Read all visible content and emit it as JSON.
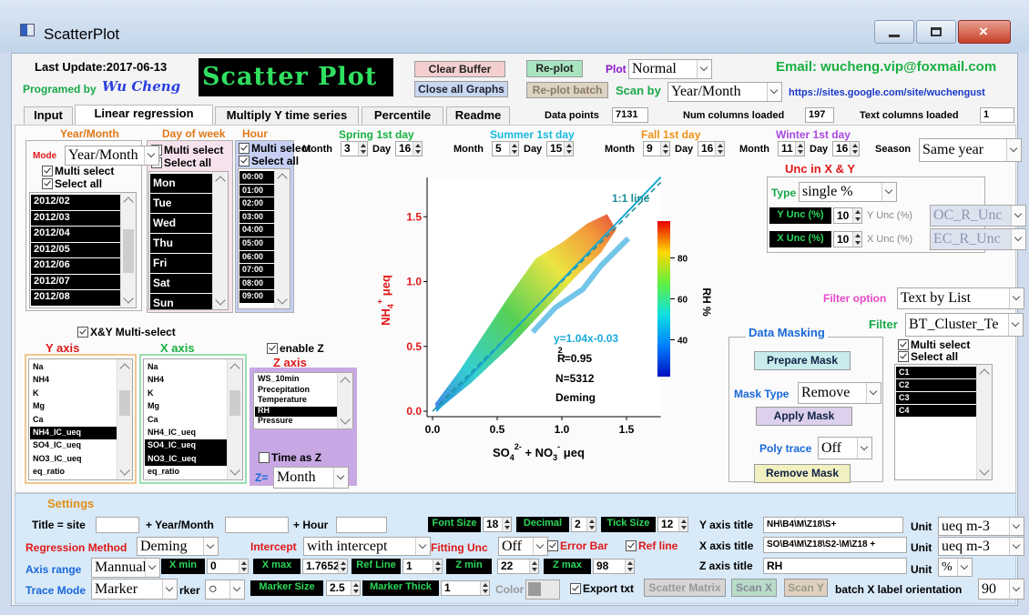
{
  "window": {
    "title": "ScatterPlot"
  },
  "header": {
    "last_update": "Last Update:2017-06-13",
    "programmed_by": "Programed by",
    "author": "Wu Cheng",
    "logo": "Scatter Plot",
    "clear_buffer": "Clear Buffer",
    "close_all_graphs": "Close all Graphs",
    "replot": "Re-plot",
    "replot_batch": "Re-plot batch",
    "plot_label": "Plot",
    "plot_value": "Normal",
    "scan_by_label": "Scan by",
    "scan_by_value": "Year/Month",
    "email": "Email: wucheng.vip@foxmail.com",
    "url": "https://sites.google.com/site/wuchengust"
  },
  "tabs": [
    "Input",
    "Linear regression",
    "Multiply Y time series",
    "Percentile",
    "Readme"
  ],
  "active_tab": 1,
  "status": {
    "data_points_label": "Data points",
    "data_points": 7131,
    "num_columns_label": "Num columns loaded",
    "num_columns": 197,
    "text_columns_label": "Text columns loaded",
    "text_columns": 1
  },
  "year_month": {
    "title": "Year/Month",
    "mode_label": "Mode",
    "mode_value": "Year/Month",
    "multi_select": "Multi select",
    "select_all": "Select all",
    "items": [
      "2012/02",
      "2012/03",
      "2012/04",
      "2012/05",
      "2012/06",
      "2012/07",
      "2012/08"
    ]
  },
  "day_of_week": {
    "title": "Day of week",
    "multi_select": "Multi select",
    "select_all": "Select all",
    "items": [
      "Mon",
      "Tue",
      "Wed",
      "Thu",
      "Fri",
      "Sat",
      "Sun"
    ]
  },
  "hour": {
    "title": "Hour",
    "multi_select": "Multi select",
    "select_all": "Select all",
    "items": [
      "00:00",
      "01:00",
      "02:00",
      "03:00",
      "04:00",
      "05:00",
      "06:00",
      "07:00",
      "08:00",
      "09:00"
    ]
  },
  "seasons": {
    "items": [
      {
        "title": "Spring 1st day",
        "month_label": "Month",
        "month": 3,
        "day_label": "Day",
        "day": 16
      },
      {
        "title": "Summer 1st day",
        "month_label": "Month",
        "month": 5,
        "day_label": "Day",
        "day": 15
      },
      {
        "title": "Fall 1st day",
        "month_label": "Month",
        "month": 9,
        "day_label": "Day",
        "day": 16
      },
      {
        "title": "Winter 1st day",
        "month_label": "Month",
        "month": 11,
        "day_label": "Day",
        "day": 16
      }
    ],
    "season_label": "Season",
    "season_value": "Same year"
  },
  "uncertainty": {
    "title": "Unc in X & Y",
    "type_label": "Type",
    "type_value": "single %",
    "y_button": "Y Unc (%)",
    "y_value": 10,
    "y_label": "Y Unc (%)",
    "y_column": "OC_R_Unc",
    "x_button": "X Unc (%)",
    "x_value": 10,
    "x_label": "X Unc (%)",
    "x_column": "EC_R_Unc"
  },
  "filter": {
    "option_label": "Filter option",
    "option_value": "Text by List",
    "filter_label": "Filter",
    "filter_value": "BT_Cluster_Te",
    "multi_select": "Multi select",
    "select_all": "Select all",
    "items": [
      "C1",
      "C2",
      "C3",
      "C4"
    ]
  },
  "masking": {
    "title": "Data Masking",
    "prepare": "Prepare Mask",
    "type_label": "Mask Type",
    "type_value": "Remove",
    "apply": "Apply Mask",
    "poly_label": "Poly trace",
    "poly_value": "Off",
    "remove": "Remove Mask"
  },
  "plot": {
    "yticks": [
      "0.0",
      "0.5",
      "1.0",
      "1.5"
    ],
    "xticks": [
      "0.0",
      "0.5",
      "1.0",
      "1.5"
    ],
    "colorbar_ticks": [
      40,
      60,
      80
    ],
    "colorbar_label": "RH %",
    "ref_line_label": "1:1 line",
    "fit_equation": "y=1.04x-0.03",
    "r_squared": {
      "base": "R",
      "sup": "2",
      "rest": "=0.95"
    },
    "n": "N=5312",
    "method": "Deming",
    "y_label": [
      "NH",
      "4",
      "+",
      " μeq"
    ],
    "x_label": [
      "SO",
      "4",
      "2-",
      " + NO",
      "3",
      "-",
      " μeq"
    ]
  },
  "axes_select": {
    "xy_multi": "X&Y Multi-select",
    "y_title": "Y axis",
    "x_title": "X axis",
    "y_items": [
      "Na",
      "NH4",
      "K",
      "Mg",
      "Ca",
      "NH4_IC_ueq",
      "SO4_IC_ueq",
      "NO3_IC_ueq",
      "eq_ratio"
    ],
    "y_selected": [
      5
    ],
    "x_items": [
      "Na",
      "NH4",
      "K",
      "Mg",
      "Ca",
      "NH4_IC_ueq",
      "SO4_IC_ueq",
      "NO3_IC_ueq",
      "eq_ratio"
    ],
    "x_selected": [
      6,
      7
    ],
    "enable_z": "enable Z",
    "z_title": "Z axis",
    "z_items": [
      "WS_10min",
      "Precepitation",
      "Temperature",
      "RH",
      "Pressure"
    ],
    "z_selected": [
      3
    ],
    "time_as_z": "Time as Z",
    "z_eq": "Z=",
    "z_value": "Month"
  },
  "settings": {
    "title": "Settings",
    "title_site": "Title = site",
    "plus_year_month": "+ Year/Month",
    "plus_hour": "+ Hour",
    "font_size_label": "Font Size",
    "font_size": 18,
    "decimal_label": "Decimal",
    "decimal": 2,
    "tick_size_label": "Tick Size",
    "tick_size": 12,
    "y_axis_title_label": "Y axis title",
    "y_axis_title": "NH\\B4\\M\\Z18\\S+",
    "y_unit_label": "Unit",
    "y_unit": "ueq m-3",
    "regression_label": "Regression Method",
    "regression": "Deming",
    "intercept_label": "Intercept",
    "intercept": "with intercept",
    "fitting_unc_label": "Fitting Unc",
    "fitting_unc": "Off",
    "error_bar": "Error Bar",
    "ref_line": "Ref line",
    "x_axis_title_label": "X axis title",
    "x_axis_title": "SO\\B4\\M\\Z18\\S2-\\M\\Z18 +",
    "x_unit_label": "Unit",
    "x_unit": "ueq m-3",
    "axis_range_label": "Axis range",
    "axis_range": "Mannual",
    "xmin_label": "X min",
    "xmin": 0,
    "xmax_label": "X max",
    "xmax": 1.7652,
    "refline_label": "Ref Line",
    "refline": 1,
    "zmin_label": "Z min",
    "zmin": 22,
    "zmax_label": "Z max",
    "zmax": 98,
    "z_axis_title_label": "Z axis title",
    "z_axis_title": "RH",
    "z_unit_label": "Unit",
    "z_unit": "%",
    "trace_mode_label": "Trace Mode",
    "trace_mode": "Marker",
    "marker_label": "rker",
    "marker": "○",
    "marker_size_label": "Marker Size",
    "marker_size": 2.5,
    "marker_thick_label": "Marker Thick",
    "marker_thick": 1,
    "color_label": "Color",
    "export_txt": "Export txt",
    "scatter_matrix": "Scatter Matrix",
    "scan_x": "Scan X",
    "scan_y": "Scan Y",
    "batch_label": "batch X label orientation",
    "batch_orientation": 90
  }
}
